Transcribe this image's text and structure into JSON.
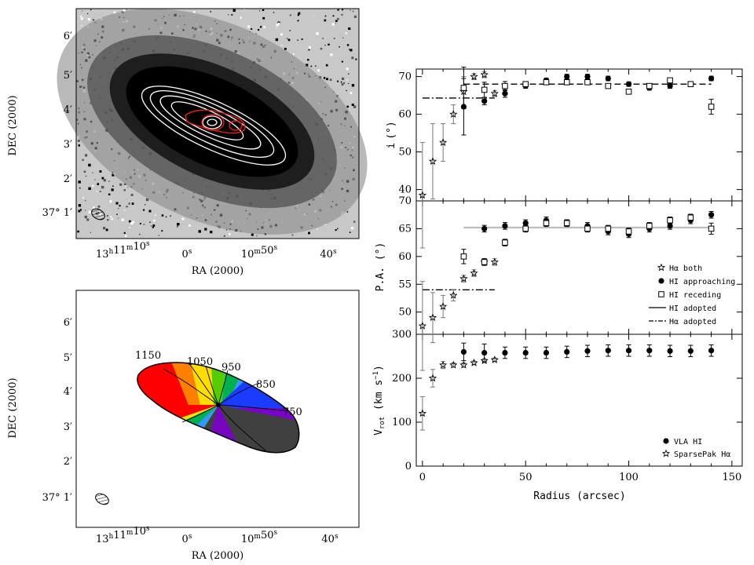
{
  "colors": {
    "image_black": "#000000",
    "image_dark": "#1a1a1a",
    "image_mid": "#6e6e6e",
    "image_light": "#bdbdbd",
    "contour_white": "#ffffff",
    "contour_red": "#e02020",
    "axis": "#000000",
    "adopted_line": "#bdbdbd",
    "error_bar": "#777777"
  },
  "left_panels": {
    "top": {
      "ylabel": "DEC (2000)",
      "xlabel": "RA (2000)",
      "dec_ticks": [
        "6′",
        "5′",
        "4′",
        "3′",
        "2′"
      ],
      "dec_bottom_label": "37° 1′",
      "ra_ticks": [
        "13h11m10s",
        "0s",
        "10m50s",
        "40s"
      ]
    },
    "bottom": {
      "ylabel": "DEC (2000)",
      "xlabel": "RA (2000)",
      "dec_ticks": [
        "6′",
        "5′",
        "4′",
        "3′",
        "2′"
      ],
      "dec_bottom_label": "37° 1′",
      "ra_ticks": [
        "13h11m10s",
        "0s",
        "10m50s",
        "40s"
      ],
      "velocity_labels": [
        "1150",
        "1050",
        "950",
        "850",
        "750"
      ],
      "velocity_colors": [
        "#ff0000",
        "#ff7f00",
        "#ffdd00",
        "#55cc00",
        "#00b050",
        "#3399ff",
        "#1a3cff",
        "#7b00cc",
        "#404040"
      ]
    }
  },
  "chart_data": [
    {
      "type": "scatter",
      "panel": "inclination",
      "ylabel": "i (°)",
      "xlim": [
        -3,
        155
      ],
      "ylim": [
        37,
        72
      ],
      "yticks": [
        40,
        50,
        60,
        70
      ],
      "xticks": [
        0,
        50,
        100,
        150
      ],
      "series": [
        {
          "symbol": "star",
          "points": [
            {
              "x": 0,
              "y": 38.5,
              "err": 14
            },
            {
              "x": 5,
              "y": 47.5,
              "err": 10
            },
            {
              "x": 10,
              "y": 52.5,
              "err": 5
            },
            {
              "x": 15,
              "y": 60,
              "err": 2.5
            },
            {
              "x": 20,
              "y": 66,
              "err": 4
            },
            {
              "x": 25,
              "y": 70,
              "err": 0.8
            },
            {
              "x": 30,
              "y": 70.5,
              "err": 0.8
            },
            {
              "x": 35,
              "y": 65.5,
              "err": 0.8
            }
          ]
        },
        {
          "symbol": "filled-circle",
          "points": [
            {
              "x": 20,
              "y": 62,
              "err": 7.5
            },
            {
              "x": 30,
              "y": 63.5,
              "err": 1
            },
            {
              "x": 40,
              "y": 65.5,
              "err": 1
            },
            {
              "x": 50,
              "y": 67.5,
              "err": 0.6
            },
            {
              "x": 60,
              "y": 69,
              "err": 0.6
            },
            {
              "x": 70,
              "y": 70,
              "err": 0.6
            },
            {
              "x": 80,
              "y": 70,
              "err": 0.6
            },
            {
              "x": 90,
              "y": 69.5,
              "err": 0.6
            },
            {
              "x": 100,
              "y": 68,
              "err": 0.6
            },
            {
              "x": 110,
              "y": 67,
              "err": 0.6
            },
            {
              "x": 120,
              "y": 67.5,
              "err": 0.6
            },
            {
              "x": 130,
              "y": 68,
              "err": 0.6
            },
            {
              "x": 140,
              "y": 69.5,
              "err": 0.6
            }
          ]
        },
        {
          "symbol": "open-square",
          "points": [
            {
              "x": 20,
              "y": 67,
              "err": 5.5
            },
            {
              "x": 30,
              "y": 66.5,
              "err": 2
            },
            {
              "x": 40,
              "y": 67.5,
              "err": 1.2
            },
            {
              "x": 50,
              "y": 68,
              "err": 0.6
            },
            {
              "x": 60,
              "y": 68.5,
              "err": 0.6
            },
            {
              "x": 70,
              "y": 68.5,
              "err": 0.6
            },
            {
              "x": 80,
              "y": 68.5,
              "err": 0.6
            },
            {
              "x": 90,
              "y": 67.5,
              "err": 0.6
            },
            {
              "x": 100,
              "y": 66,
              "err": 0.6
            },
            {
              "x": 110,
              "y": 67.5,
              "err": 0.6
            },
            {
              "x": 120,
              "y": 69,
              "err": 0.6
            },
            {
              "x": 130,
              "y": 68,
              "err": 0.6
            },
            {
              "x": 140,
              "y": 62,
              "err": 2
            }
          ]
        }
      ],
      "lines": [
        {
          "style": "dash-dot",
          "x": [
            0,
            35
          ],
          "y": 64.3
        },
        {
          "style": "solid",
          "x": [
            20,
            140
          ],
          "y": 68
        }
      ]
    },
    {
      "type": "scatter",
      "panel": "position-angle",
      "ylabel": "P.A. (°)",
      "xlim": [
        -3,
        155
      ],
      "ylim": [
        46,
        70
      ],
      "yticks": [
        50,
        55,
        60,
        65,
        70
      ],
      "xticks": [
        0,
        50,
        100,
        150
      ],
      "series": [
        {
          "name": "Hα both",
          "symbol": "star",
          "points": [
            {
              "x": 0,
              "y": 47.5,
              "err": 8
            },
            {
              "x": 5,
              "y": 49,
              "err": 4.5
            },
            {
              "x": 10,
              "y": 51,
              "err": 2
            },
            {
              "x": 15,
              "y": 53,
              "err": 1
            },
            {
              "x": 20,
              "y": 56,
              "err": 0.6
            },
            {
              "x": 25,
              "y": 57,
              "err": 0.6
            },
            {
              "x": 30,
              "y": 59,
              "err": 0.6
            },
            {
              "x": 35,
              "y": 59,
              "err": 0.6
            }
          ]
        },
        {
          "name": "HI approaching",
          "symbol": "filled-circle",
          "points": [
            {
              "x": 30,
              "y": 65,
              "err": 0.6
            },
            {
              "x": 40,
              "y": 65.5,
              "err": 0.6
            },
            {
              "x": 50,
              "y": 66,
              "err": 0.6
            },
            {
              "x": 60,
              "y": 66.5,
              "err": 0.6
            },
            {
              "x": 70,
              "y": 66,
              "err": 0.6
            },
            {
              "x": 80,
              "y": 65.5,
              "err": 0.6
            },
            {
              "x": 90,
              "y": 64.5,
              "err": 0.6
            },
            {
              "x": 100,
              "y": 64,
              "err": 0.6
            },
            {
              "x": 110,
              "y": 65,
              "err": 0.6
            },
            {
              "x": 120,
              "y": 65.5,
              "err": 0.6
            },
            {
              "x": 130,
              "y": 66.5,
              "err": 0.6
            },
            {
              "x": 140,
              "y": 67.5,
              "err": 0.6
            }
          ]
        },
        {
          "name": "HI receding",
          "symbol": "open-square",
          "points": [
            {
              "x": 20,
              "y": 60,
              "err": 1.3
            },
            {
              "x": 30,
              "y": 59,
              "err": 0.6
            },
            {
              "x": 40,
              "y": 62.5,
              "err": 0.6
            },
            {
              "x": 50,
              "y": 65,
              "err": 0.6
            },
            {
              "x": 60,
              "y": 66,
              "err": 0.6
            },
            {
              "x": 70,
              "y": 66,
              "err": 0.6
            },
            {
              "x": 80,
              "y": 65,
              "err": 0.6
            },
            {
              "x": 90,
              "y": 65,
              "err": 0.6
            },
            {
              "x": 100,
              "y": 64.5,
              "err": 0.6
            },
            {
              "x": 110,
              "y": 65.5,
              "err": 0.6
            },
            {
              "x": 120,
              "y": 66.5,
              "err": 0.6
            },
            {
              "x": 130,
              "y": 67,
              "err": 0.6
            },
            {
              "x": 140,
              "y": 65,
              "err": 1
            }
          ]
        }
      ],
      "lines": [
        {
          "style": "solid",
          "name": "HI adopted",
          "x": [
            20,
            140
          ],
          "y": 65.2
        },
        {
          "style": "dash-dot",
          "name": "Hα adopted",
          "x": [
            0,
            35
          ],
          "y": 54
        }
      ],
      "legend": [
        "Hα both",
        "HI approaching",
        "HI receding",
        "HI adopted",
        "Hα adopted"
      ]
    },
    {
      "type": "scatter",
      "panel": "rotation-curve",
      "ylabel": "V_rot (km s^-1)",
      "xlabel": "Radius (arcsec)",
      "xlim": [
        -3,
        155
      ],
      "ylim": [
        0,
        300
      ],
      "yticks": [
        0,
        100,
        200,
        300
      ],
      "xticks": [
        0,
        50,
        100,
        150
      ],
      "xtick_labels": [
        "0",
        "50",
        "100",
        "150"
      ],
      "series": [
        {
          "name": "VLA HI",
          "symbol": "filled-circle",
          "points": [
            {
              "x": 20,
              "y": 260,
              "err": 20
            },
            {
              "x": 30,
              "y": 258,
              "err": 20
            },
            {
              "x": 40,
              "y": 258,
              "err": 13
            },
            {
              "x": 50,
              "y": 258,
              "err": 13
            },
            {
              "x": 60,
              "y": 258,
              "err": 13
            },
            {
              "x": 70,
              "y": 260,
              "err": 13
            },
            {
              "x": 80,
              "y": 262,
              "err": 13
            },
            {
              "x": 90,
              "y": 263,
              "err": 13
            },
            {
              "x": 100,
              "y": 263,
              "err": 13
            },
            {
              "x": 110,
              "y": 263,
              "err": 13
            },
            {
              "x": 120,
              "y": 262,
              "err": 13
            },
            {
              "x": 130,
              "y": 262,
              "err": 13
            },
            {
              "x": 140,
              "y": 263,
              "err": 13
            }
          ]
        },
        {
          "name": "SparsePak Hα",
          "symbol": "star",
          "points": [
            {
              "x": 0,
              "y": 120,
              "err": 38
            },
            {
              "x": 5,
              "y": 200,
              "err": 20
            },
            {
              "x": 10,
              "y": 230,
              "err": 8
            },
            {
              "x": 15,
              "y": 230,
              "err": 5
            },
            {
              "x": 20,
              "y": 230,
              "err": 5
            },
            {
              "x": 25,
              "y": 235,
              "err": 4
            },
            {
              "x": 30,
              "y": 240,
              "err": 4
            },
            {
              "x": 35,
              "y": 242,
              "err": 4
            }
          ]
        }
      ],
      "legend": [
        "VLA HI",
        "SparsePak Hα"
      ]
    }
  ],
  "right_panel_text": {
    "i_label_main": "i",
    "i_label_unit": "(°)",
    "pa_label": "P.A. (°)",
    "vrot_label_main": "V",
    "vrot_label_sub": "rot",
    "vrot_label_unit": "(km s",
    "vrot_label_exp": "−1",
    "vrot_label_close": ")",
    "xlabel": "Radius (arcsec)"
  }
}
